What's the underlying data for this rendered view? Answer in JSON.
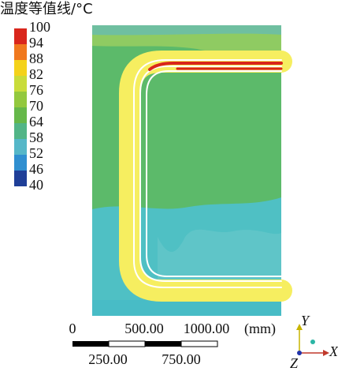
{
  "legend": {
    "title": "温度等值线/°C",
    "levels": [
      100,
      94,
      88,
      82,
      76,
      70,
      64,
      58,
      52,
      46,
      40
    ],
    "colors": [
      "#d9261c",
      "#f0781e",
      "#f4d21a",
      "#c9dc3a",
      "#93c83e",
      "#66b84a",
      "#52b587",
      "#55b7c8",
      "#2f8fd0",
      "#1f3f98"
    ]
  },
  "scale_bar": {
    "top_labels": [
      "0",
      "500.00",
      "1000.00"
    ],
    "unit": "(mm)",
    "bottom_labels": [
      "250.00",
      "750.00"
    ]
  },
  "triad": {
    "y": "Y",
    "x": "X",
    "z": "Z"
  }
}
